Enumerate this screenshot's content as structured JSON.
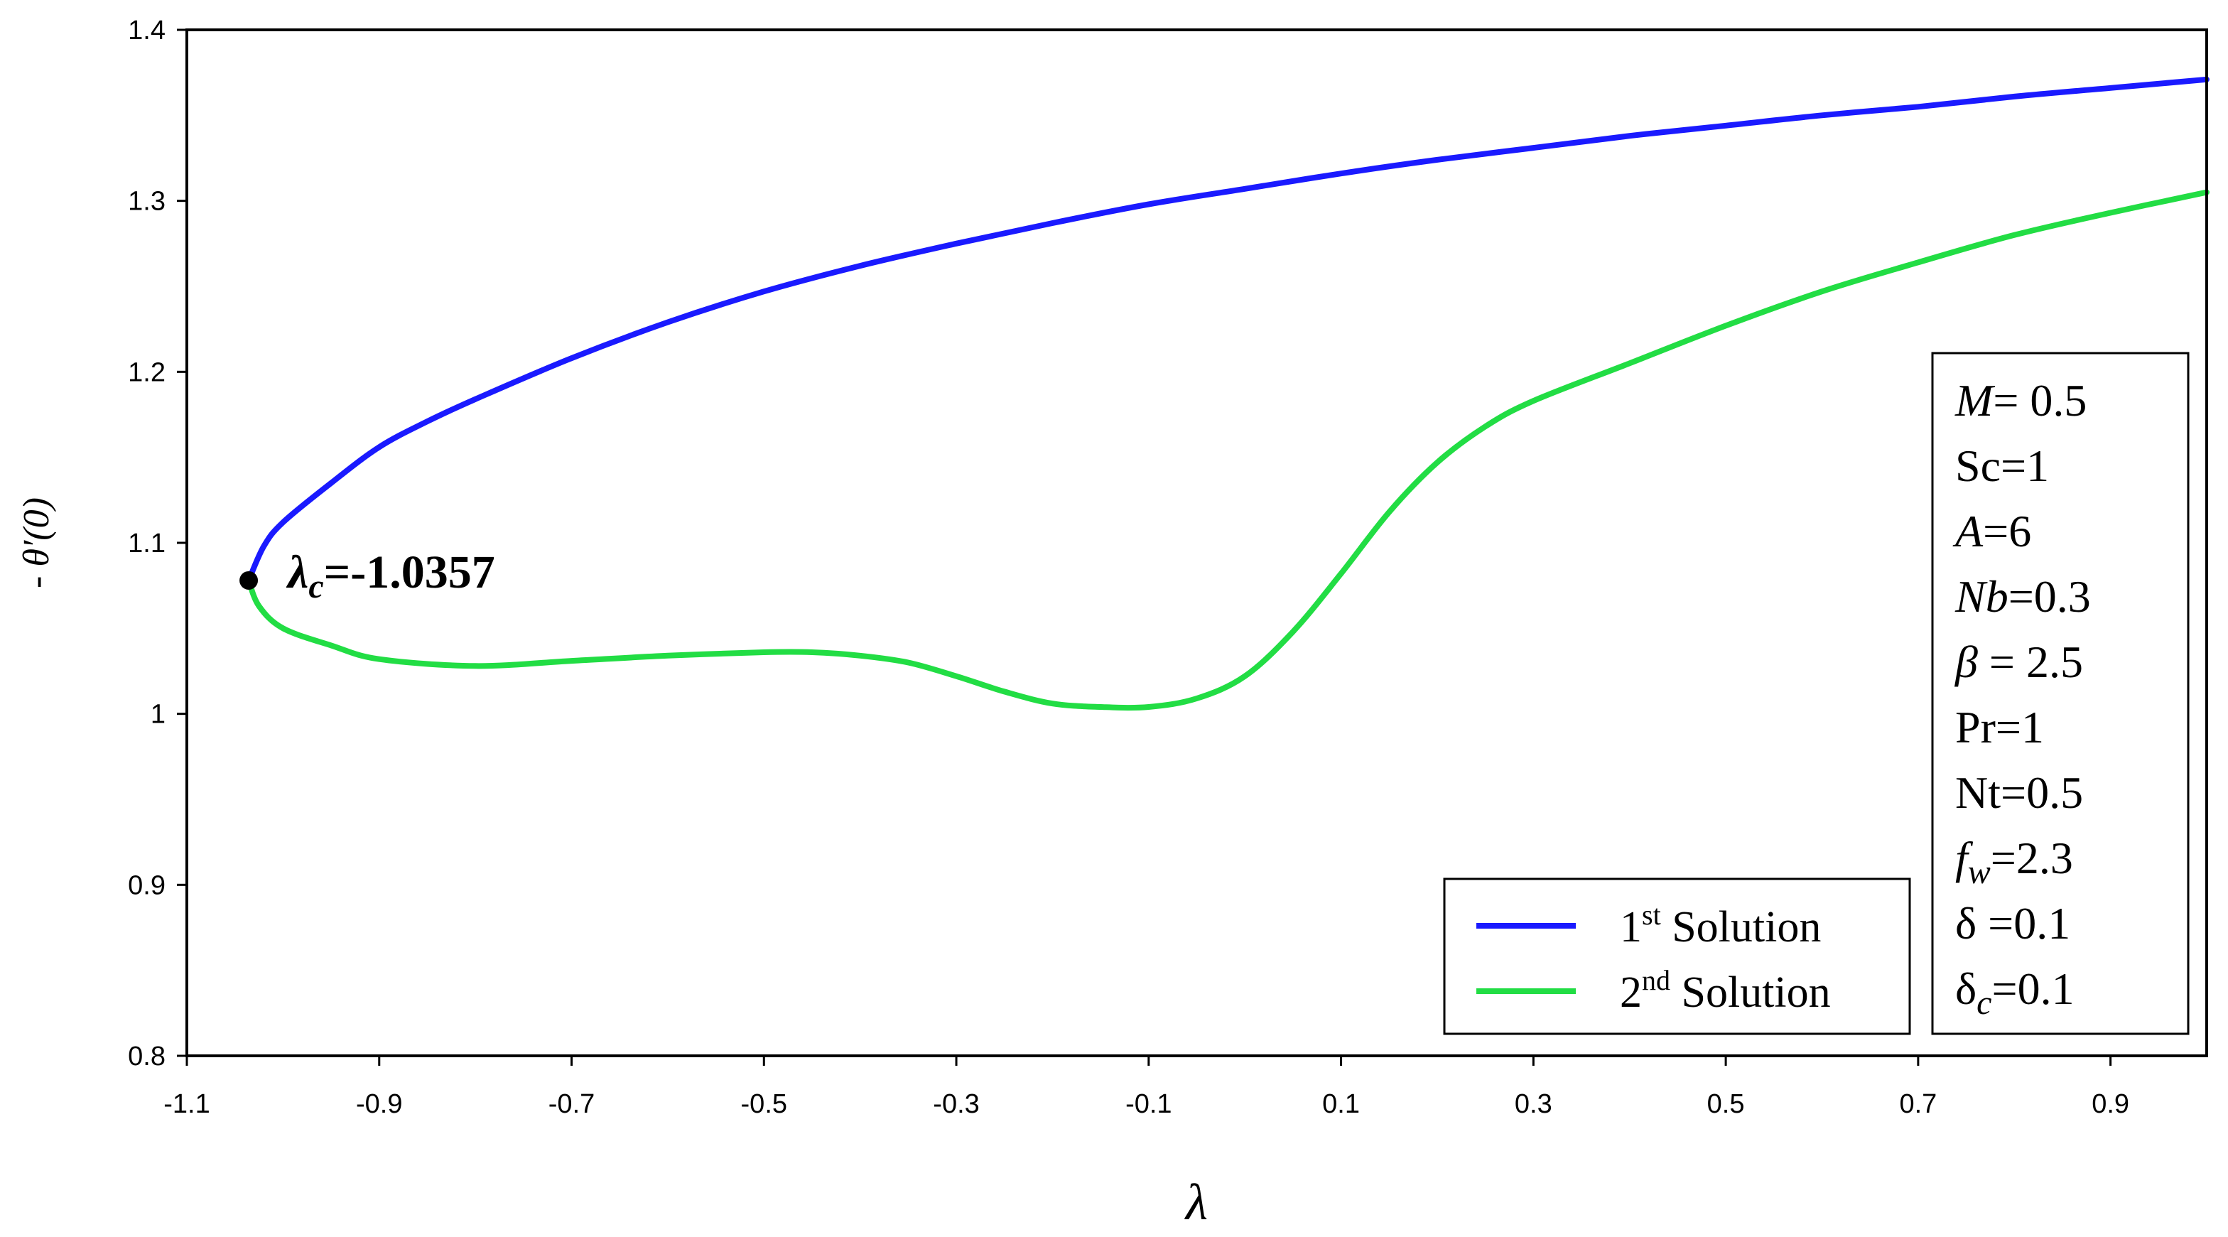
{
  "chart_data": {
    "type": "line",
    "xlabel": "λ",
    "ylabel": "- θ′(0)",
    "xlim": [
      -1.1,
      1.0
    ],
    "ylim": [
      0.8,
      1.4
    ],
    "x_ticks": [
      "-1.1",
      "-0.9",
      "-0.7",
      "-0.5",
      "-0.3",
      "-0.1",
      "0.1",
      "0.3",
      "0.5",
      "0.7",
      "0.9"
    ],
    "y_ticks": [
      "0.8",
      "0.9",
      "1",
      "1.1",
      "1.2",
      "1.3",
      "1.4"
    ],
    "grid": false,
    "legend_position": "bottom-right",
    "critical_point": {
      "x": -1.0357,
      "y": 1.078,
      "label_symbol": "λ",
      "label_sub": "c",
      "label_value": "=-1.0357"
    },
    "series": [
      {
        "name_sup": "st",
        "name_main": "1",
        "name_rest": " Solution",
        "color": "#1a1aff",
        "points": [
          [
            -1.0357,
            1.078
          ],
          [
            -1.02,
            1.098
          ],
          [
            -1.0,
            1.112
          ],
          [
            -0.95,
            1.135
          ],
          [
            -0.9,
            1.156
          ],
          [
            -0.85,
            1.171
          ],
          [
            -0.8,
            1.184
          ],
          [
            -0.7,
            1.208
          ],
          [
            -0.6,
            1.229
          ],
          [
            -0.5,
            1.247
          ],
          [
            -0.4,
            1.262
          ],
          [
            -0.3,
            1.275
          ],
          [
            -0.2,
            1.287
          ],
          [
            -0.1,
            1.298
          ],
          [
            0.0,
            1.307
          ],
          [
            0.1,
            1.316
          ],
          [
            0.2,
            1.324
          ],
          [
            0.3,
            1.331
          ],
          [
            0.4,
            1.338
          ],
          [
            0.5,
            1.344
          ],
          [
            0.6,
            1.35
          ],
          [
            0.7,
            1.355
          ],
          [
            0.8,
            1.361
          ],
          [
            0.9,
            1.366
          ],
          [
            1.0,
            1.371
          ]
        ]
      },
      {
        "name_sup": "nd",
        "name_main": "2",
        "name_rest": " Solution",
        "color": "#22dd44",
        "points": [
          [
            -1.0357,
            1.078
          ],
          [
            -1.025,
            1.063
          ],
          [
            -1.0,
            1.05
          ],
          [
            -0.95,
            1.04
          ],
          [
            -0.9,
            1.032
          ],
          [
            -0.8,
            1.028
          ],
          [
            -0.7,
            1.031
          ],
          [
            -0.6,
            1.034
          ],
          [
            -0.5,
            1.036
          ],
          [
            -0.45,
            1.036
          ],
          [
            -0.4,
            1.034
          ],
          [
            -0.35,
            1.03
          ],
          [
            -0.3,
            1.022
          ],
          [
            -0.25,
            1.013
          ],
          [
            -0.2,
            1.006
          ],
          [
            -0.15,
            1.004
          ],
          [
            -0.1,
            1.004
          ],
          [
            -0.05,
            1.009
          ],
          [
            0.0,
            1.022
          ],
          [
            0.05,
            1.048
          ],
          [
            0.1,
            1.082
          ],
          [
            0.15,
            1.118
          ],
          [
            0.2,
            1.147
          ],
          [
            0.25,
            1.168
          ],
          [
            0.3,
            1.183
          ],
          [
            0.4,
            1.205
          ],
          [
            0.5,
            1.227
          ],
          [
            0.6,
            1.247
          ],
          [
            0.7,
            1.264
          ],
          [
            0.8,
            1.28
          ],
          [
            0.9,
            1.293
          ],
          [
            1.0,
            1.305
          ]
        ]
      }
    ],
    "parameters": [
      {
        "name": "M",
        "italic": true,
        "sub": "",
        "value": "= 0.5"
      },
      {
        "name": "Sc",
        "italic": false,
        "sub": "",
        "value": "=1"
      },
      {
        "name": "A",
        "italic": true,
        "sub": "",
        "value": "=6"
      },
      {
        "name": "Nb",
        "italic": true,
        "sub": "",
        "value": "=0.3"
      },
      {
        "name": "β",
        "italic": true,
        "sub": "",
        "value": " = 2.5"
      },
      {
        "name": "Pr",
        "italic": false,
        "sub": "",
        "value": "=1"
      },
      {
        "name": "Nt",
        "italic": false,
        "sub": "",
        "value": "=0.5"
      },
      {
        "name": "f",
        "italic": true,
        "sub": "w",
        "value": "=2.3"
      },
      {
        "name": "δ",
        "italic": false,
        "sub": "",
        "value": " =0.1"
      },
      {
        "name": "δ",
        "italic": false,
        "sub": "c",
        "value": "=0.1"
      }
    ]
  }
}
